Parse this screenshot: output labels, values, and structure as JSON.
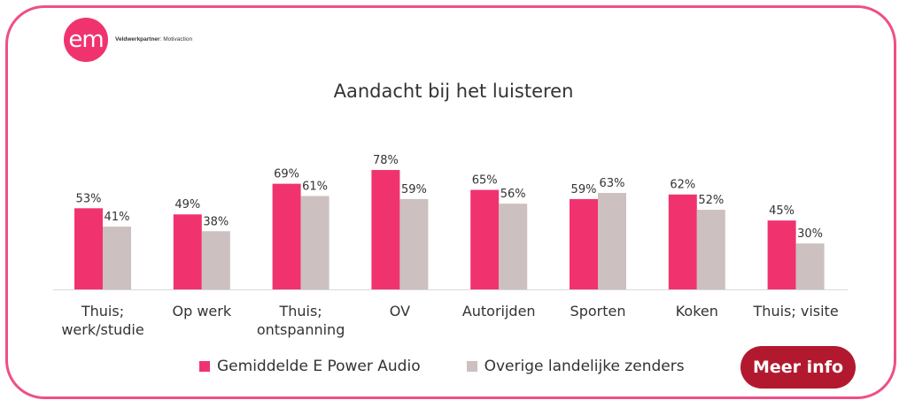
{
  "header": {
    "logo_text": "em",
    "partner_label": "Veldwerkpartner",
    "partner_value": ": Motivaction"
  },
  "colors": {
    "frame": "#ee4f86",
    "series_primary": "#f0336f",
    "series_secondary": "#ccc0c0",
    "button_bg": "#b3192e"
  },
  "chart_data": {
    "type": "bar",
    "title": "Aandacht bij het luisteren",
    "categories": [
      [
        "Thuis;",
        "werk/studie"
      ],
      [
        "Op werk"
      ],
      [
        "Thuis;",
        "ontspanning"
      ],
      [
        "OV"
      ],
      [
        "Autorijden"
      ],
      [
        "Sporten"
      ],
      [
        "Koken"
      ],
      [
        "Thuis; visite"
      ]
    ],
    "series": [
      {
        "name": "Gemiddelde E Power Audio",
        "values": [
          53,
          49,
          69,
          78,
          65,
          59,
          62,
          45
        ],
        "labels": [
          "53%",
          "49%",
          "69%",
          "78%",
          "65%",
          "59%",
          "62%",
          "45%"
        ]
      },
      {
        "name": "Overige landelijke zenders",
        "values": [
          41,
          38,
          61,
          59,
          56,
          63,
          52,
          30
        ],
        "labels": [
          "41%",
          "38%",
          "61%",
          "59%",
          "56%",
          "63%",
          "52%",
          "30%"
        ]
      }
    ],
    "ylim": [
      0,
      100
    ],
    "grid": false,
    "legend_position": "bottom"
  },
  "button": {
    "label": "Meer info"
  }
}
